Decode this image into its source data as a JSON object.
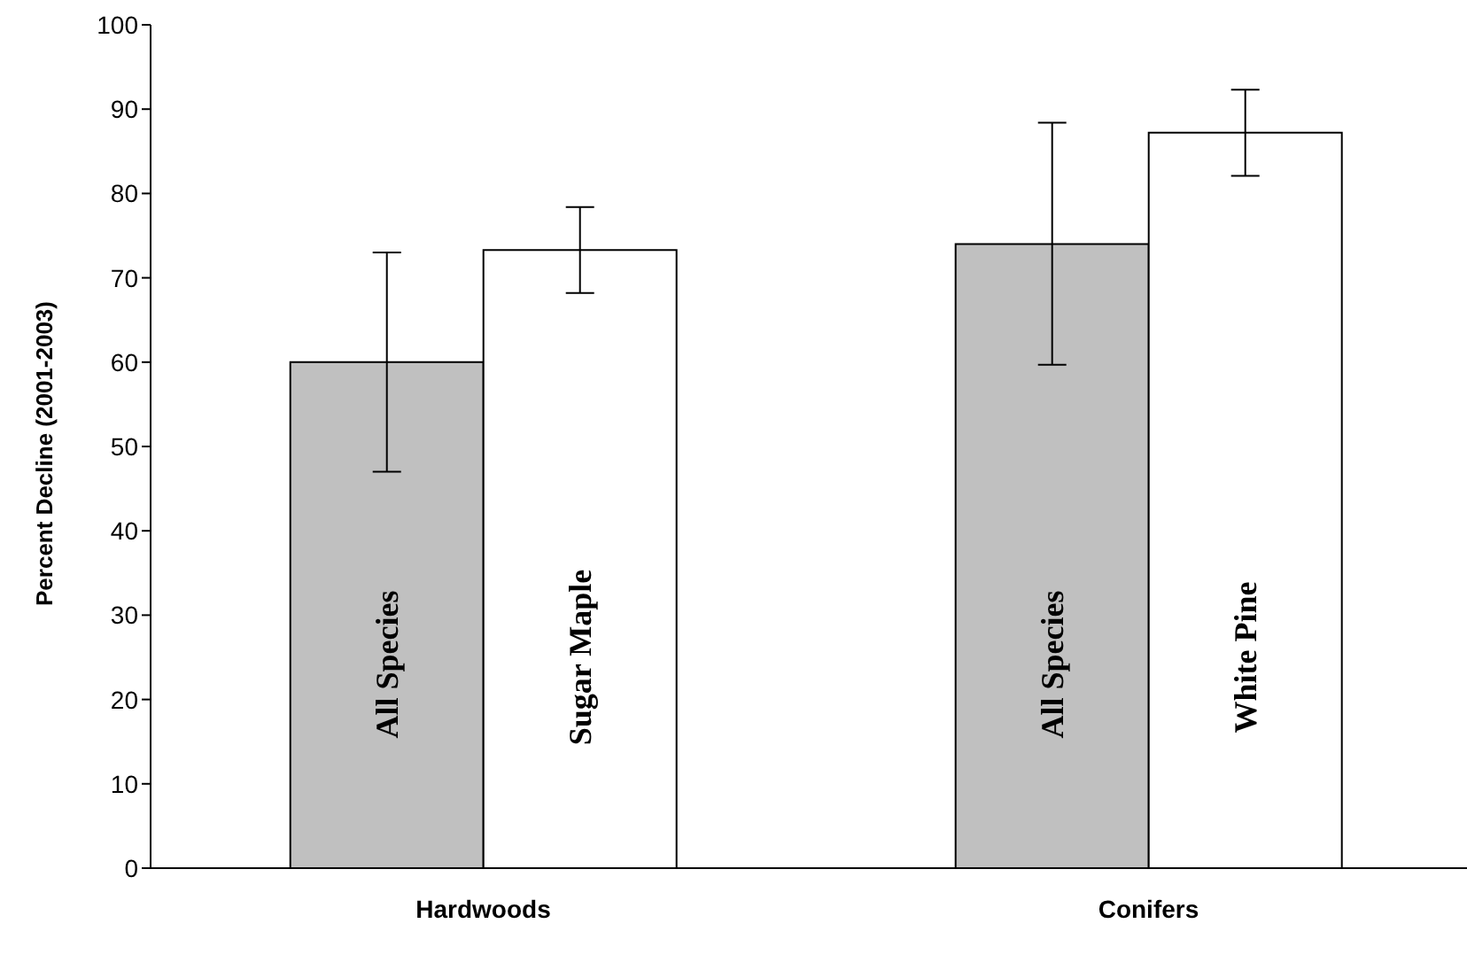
{
  "chart_data": {
    "type": "bar",
    "ylabel": "Percent Decline (2001-2003)",
    "categories": [
      "Hardwoods",
      "Conifers"
    ],
    "series": [
      {
        "name": "All Species",
        "color": "#c0c0c0",
        "values": [
          60,
          74
        ],
        "errors": [
          [
            47,
            73
          ],
          [
            59.7,
            88.4
          ]
        ]
      },
      {
        "color": "#ffffff",
        "values": [
          73.3,
          87.2
        ],
        "errors": [
          [
            68.2,
            78.4
          ],
          [
            82.1,
            92.3
          ]
        ]
      }
    ],
    "annotations": [
      {
        "text": "Sugar Maple",
        "x": "Hardwoods",
        "y": 25
      },
      {
        "text": "White Pine",
        "x": "Conifers",
        "y": 25
      }
    ],
    "ylim": [
      0,
      100
    ],
    "yticks": [
      0,
      10,
      20,
      30,
      40,
      50,
      60,
      70,
      80,
      90,
      100
    ]
  }
}
